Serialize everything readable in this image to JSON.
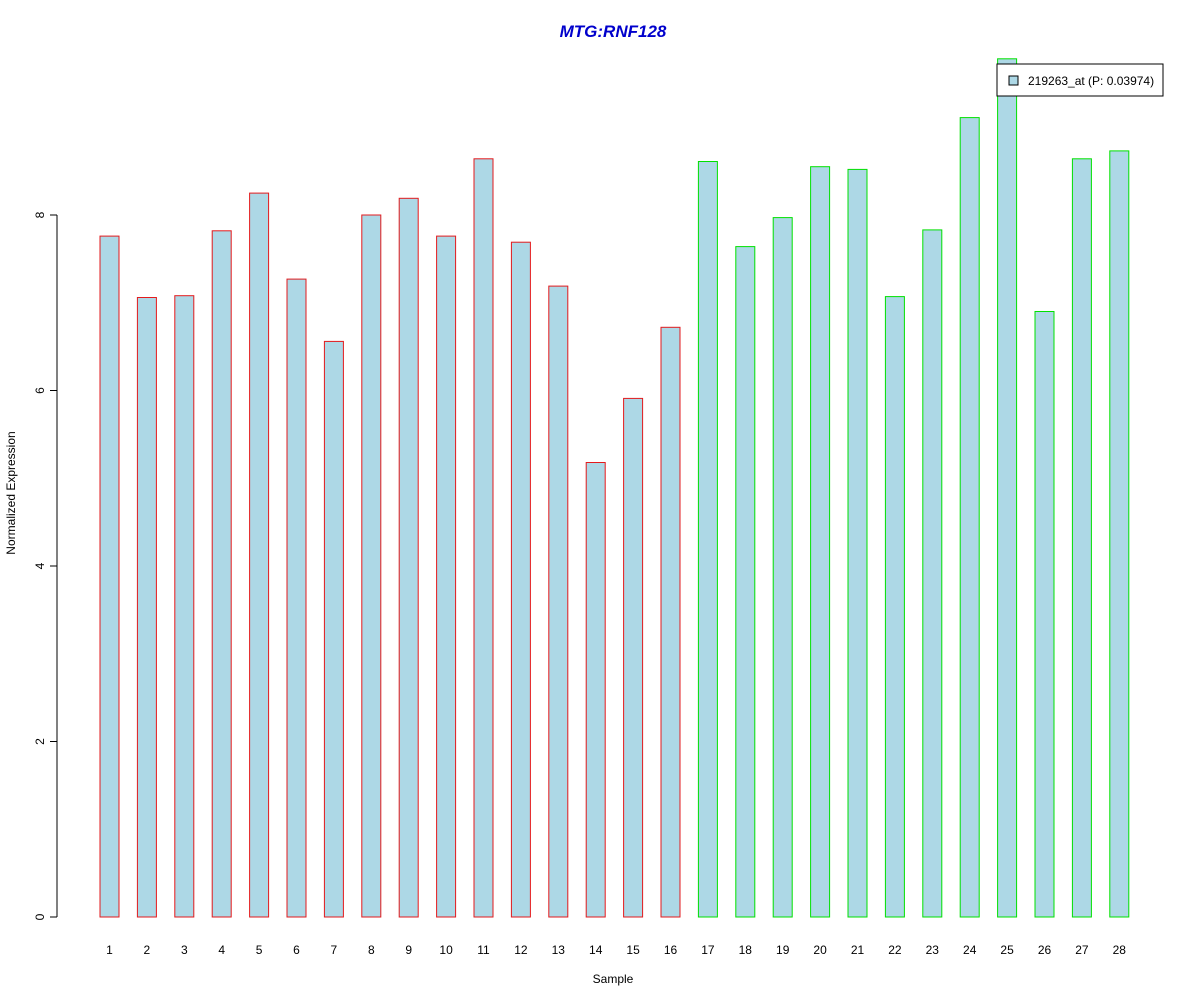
{
  "chart_data": {
    "type": "bar",
    "title": "MTG:RNF128",
    "xlabel": "Sample",
    "ylabel": "Normalized Expression",
    "ylim": [
      0,
      9.8
    ],
    "yticks": [
      0,
      2,
      4,
      6,
      8
    ],
    "grid": false,
    "categories": [
      "1",
      "2",
      "3",
      "4",
      "5",
      "6",
      "7",
      "8",
      "9",
      "10",
      "11",
      "12",
      "13",
      "14",
      "15",
      "16",
      "17",
      "18",
      "19",
      "20",
      "21",
      "22",
      "23",
      "24",
      "25",
      "26",
      "27",
      "28"
    ],
    "values": [
      7.76,
      7.06,
      7.08,
      7.82,
      8.25,
      7.27,
      6.56,
      8.0,
      8.19,
      7.76,
      8.64,
      7.69,
      7.19,
      5.18,
      5.91,
      6.72,
      8.61,
      7.64,
      7.97,
      8.55,
      8.52,
      7.07,
      7.83,
      9.11,
      9.78,
      6.9,
      8.64,
      8.73
    ],
    "series": [
      {
        "name": "219263_at (P: 0.03974)",
        "values": [
          7.76,
          7.06,
          7.08,
          7.82,
          8.25,
          7.27,
          6.56,
          8.0,
          8.19,
          7.76,
          8.64,
          7.69,
          7.19,
          5.18,
          5.91,
          6.72,
          8.61,
          7.64,
          7.97,
          8.55,
          8.52,
          7.07,
          7.83,
          9.11,
          9.78,
          6.9,
          8.64,
          8.73
        ]
      }
    ],
    "groups": [
      {
        "samples": [
          "1",
          "2",
          "3",
          "4",
          "5",
          "6",
          "7",
          "8",
          "9",
          "10",
          "11",
          "12",
          "13",
          "14",
          "15",
          "16"
        ],
        "border_color": "#e31a1c"
      },
      {
        "samples": [
          "17",
          "18",
          "19",
          "20",
          "21",
          "22",
          "23",
          "24",
          "25",
          "26",
          "27",
          "28"
        ],
        "border_color": "#00e000"
      }
    ],
    "legend": {
      "label": "219263_at (P: 0.03974)",
      "placement": "top-right"
    },
    "colors": {
      "bar_fill": "#add8e6",
      "title": "#0000cc",
      "axis": "#000000"
    }
  }
}
